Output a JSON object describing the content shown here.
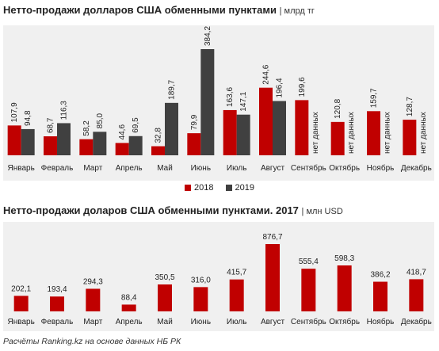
{
  "chart1": {
    "title": "Нетто-продажи долларов США обменными пунктами",
    "unit": "| млрд тг",
    "legend": [
      {
        "name": "2018",
        "color": "#c00000"
      },
      {
        "name": "2019",
        "color": "#404040"
      }
    ]
  },
  "chart2": {
    "title": "Нетто-продажи доларов США обменными пунктами. 2017",
    "unit": "| млн USD"
  },
  "footer": "Расчёты Ranking.kz на основе данных НБ РК",
  "colors": {
    "red": "#c00000",
    "dark": "#404040",
    "panel": "#f0f0f0"
  },
  "chart_data": [
    {
      "type": "bar",
      "categories": [
        "Январь",
        "Февраль",
        "Март",
        "Апрель",
        "Май",
        "Июнь",
        "Июль",
        "Август",
        "Сентябрь",
        "Октябрь",
        "Ноябрь",
        "Декабрь"
      ],
      "series": [
        {
          "name": "2018",
          "values": [
            107.9,
            68.7,
            58.2,
            44.6,
            32.8,
            79.9,
            163.6,
            244.6,
            199.6,
            120.8,
            159.7,
            128.7
          ]
        },
        {
          "name": "2019",
          "values": [
            94.8,
            116.3,
            85.0,
            69.5,
            189.7,
            384.2,
            147.1,
            196.4,
            null,
            null,
            null,
            null
          ],
          "value_labels": [
            "94,8",
            "116,3",
            "85,0",
            "69,5",
            "189,7",
            "384,2",
            "147,1",
            "196,4",
            "нет данных",
            "нет данных",
            "нет данных",
            "нет данных"
          ]
        }
      ],
      "value_labels_2018": [
        "107,9",
        "68,7",
        "58,2",
        "44,6",
        "32,8",
        "79,9",
        "163,6",
        "244,6",
        "199,6",
        "120,8",
        "159,7",
        "128,7"
      ],
      "ylim": [
        0,
        384.2
      ]
    },
    {
      "type": "bar",
      "categories": [
        "Январь",
        "Февраль",
        "Март",
        "Апрель",
        "Май",
        "Июнь",
        "Июль",
        "Август",
        "Сентябрь",
        "Октябрь",
        "Ноябрь",
        "Декабрь"
      ],
      "series": [
        {
          "name": "2017",
          "values": [
            202.1,
            193.4,
            294.3,
            88.4,
            350.5,
            316.0,
            415.7,
            876.7,
            555.4,
            598.3,
            386.2,
            418.7
          ]
        }
      ],
      "value_labels": [
        "202,1",
        "193,4",
        "294,3",
        "88,4",
        "350,5",
        "316,0",
        "415,7",
        "876,7",
        "555,4",
        "598,3",
        "386,2",
        "418,7"
      ],
      "ylim": [
        0,
        876.7
      ]
    }
  ]
}
